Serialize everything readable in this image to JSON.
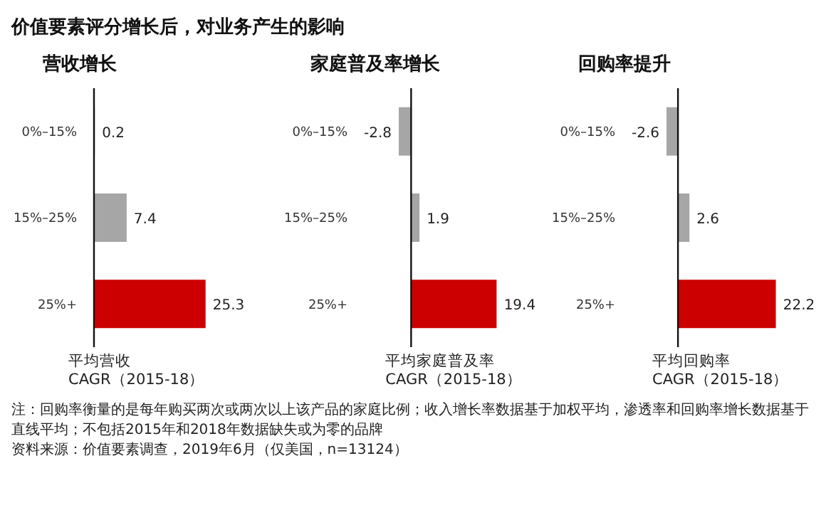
{
  "chart_data": [
    {
      "type": "bar",
      "orientation": "horizontal",
      "title": "营收增长",
      "xlabel": "平均营收\nCAGR（2015-18）",
      "categories": [
        "0%–15%",
        "15%–25%",
        "25%+"
      ],
      "values": [
        0.2,
        7.4,
        25.3
      ],
      "colors": [
        "#a6a6a6",
        "#a6a6a6",
        "#cc0000"
      ],
      "data_labels": true,
      "legend": false,
      "annotations": [
        "价值要素评分增长后，对业务产生的影响",
        "注：回购率衡量的是每年购买两次或两次以上该产品的家庭比例；收入增长率数据基于加权平均，渗透率和回购率增长数据基于直线平均；不包括2015年和2018年数据缺失或为零的品牌",
        "资料来源：价值要素调查，2019年6月（仅美国，n=13124）"
      ]
    },
    {
      "type": "bar",
      "orientation": "horizontal",
      "title": "家庭普及率增长",
      "xlabel": "平均家庭普及率\nCAGR（2015-18）",
      "categories": [
        "0%–15%",
        "15%–25%",
        "25%+"
      ],
      "values": [
        -2.8,
        1.9,
        19.4
      ],
      "colors": [
        "#a6a6a6",
        "#a6a6a6",
        "#cc0000"
      ],
      "data_labels": true,
      "legend": false
    },
    {
      "type": "bar",
      "orientation": "horizontal",
      "title": "回购率提升",
      "xlabel": "平均回购率\nCAGR（2015-18）",
      "categories": [
        "0%–15%",
        "15%–25%",
        "25%+"
      ],
      "values": [
        -2.6,
        2.6,
        22.2
      ],
      "colors": [
        "#a6a6a6",
        "#a6a6a6",
        "#cc0000"
      ],
      "data_labels": true,
      "legend": false
    }
  ]
}
